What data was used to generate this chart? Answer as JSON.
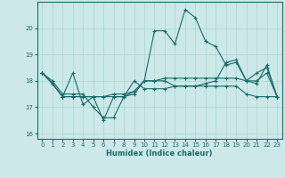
{
  "xlabel": "Humidex (Indice chaleur)",
  "bg_color": "#cce8e8",
  "line_color": "#1a6b6b",
  "grid_color": "#aad4d4",
  "xlim": [
    -0.5,
    23.5
  ],
  "ylim": [
    15.8,
    21.0
  ],
  "yticks": [
    16,
    17,
    18,
    19,
    20
  ],
  "xticks": [
    0,
    1,
    2,
    3,
    4,
    5,
    6,
    7,
    8,
    9,
    10,
    11,
    12,
    13,
    14,
    15,
    16,
    17,
    18,
    19,
    20,
    21,
    22,
    23
  ],
  "series": [
    [
      18.3,
      17.9,
      17.4,
      18.3,
      17.1,
      17.4,
      16.5,
      17.4,
      17.4,
      17.6,
      18.0,
      19.9,
      19.9,
      19.4,
      20.7,
      20.4,
      19.5,
      19.3,
      18.6,
      18.7,
      18.0,
      18.3,
      18.5,
      17.4
    ],
    [
      18.3,
      17.9,
      17.4,
      17.4,
      17.4,
      17.4,
      17.4,
      17.4,
      17.4,
      17.5,
      18.0,
      18.0,
      18.0,
      17.8,
      17.8,
      17.8,
      17.8,
      17.8,
      17.8,
      17.8,
      17.5,
      17.4,
      17.4,
      17.4
    ],
    [
      18.3,
      17.9,
      17.4,
      17.4,
      17.4,
      17.4,
      17.4,
      17.5,
      17.5,
      17.6,
      18.0,
      18.0,
      18.1,
      18.1,
      18.1,
      18.1,
      18.1,
      18.1,
      18.1,
      18.1,
      18.0,
      18.0,
      18.3,
      17.4
    ],
    [
      18.3,
      18.0,
      17.5,
      17.5,
      17.5,
      17.0,
      16.6,
      16.6,
      17.4,
      18.0,
      17.7,
      17.7,
      17.7,
      17.8,
      17.8,
      17.8,
      17.9,
      18.0,
      18.7,
      18.8,
      18.0,
      17.9,
      18.6,
      17.4
    ]
  ]
}
